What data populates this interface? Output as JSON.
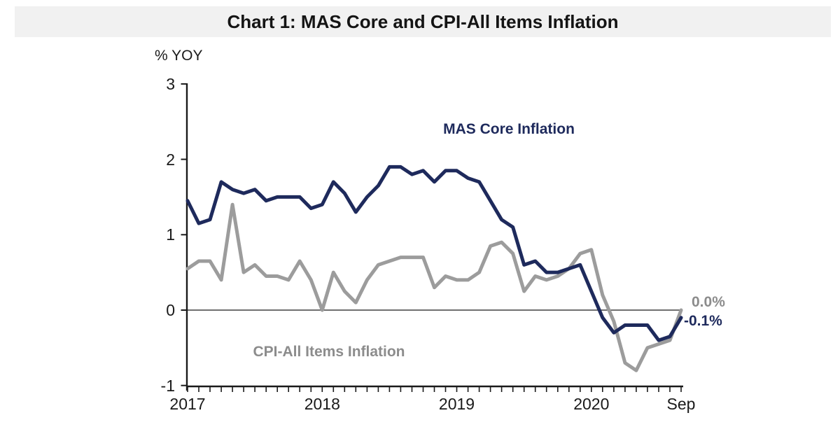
{
  "title": "Chart 1: MAS Core and CPI-All Items Inflation",
  "colors": {
    "navy": "#1E2A5C",
    "gray_line": "#9C9C9C",
    "gray_text": "#8C8C8C",
    "band_bg": "#F1F1F1",
    "axis": "#1A1A1A"
  },
  "chart_data": {
    "type": "line",
    "title": "Chart 1: MAS Core and CPI-All Items Inflation",
    "ylabel": "% YOY",
    "ylim": [
      -1,
      3
    ],
    "y_ticks": [
      3,
      2,
      1,
      0,
      -1
    ],
    "y_tick_labels": [
      "3",
      "2",
      "1",
      "0",
      "-1"
    ],
    "x_tick_labels": [
      "2017",
      "2018",
      "2019",
      "2020",
      "Sep"
    ],
    "x_start": "Jan 2017",
    "x_end": "Sep 2020",
    "grid": "off",
    "legend_position": "inline-annotations",
    "series": [
      {
        "name": "CPI-All Items Inflation",
        "color": "#9C9C9C",
        "end_label": "0.0%",
        "end_value": 0.0,
        "values": [
          0.55,
          0.65,
          0.65,
          0.4,
          1.4,
          0.5,
          0.6,
          0.45,
          0.45,
          0.4,
          0.65,
          0.4,
          0.0,
          0.5,
          0.25,
          0.1,
          0.4,
          0.6,
          0.65,
          0.7,
          0.7,
          0.7,
          0.3,
          0.45,
          0.4,
          0.4,
          0.5,
          0.85,
          0.9,
          0.75,
          0.25,
          0.45,
          0.4,
          0.45,
          0.55,
          0.75,
          0.8,
          0.2,
          -0.15,
          -0.7,
          -0.8,
          -0.5,
          -0.45,
          -0.4,
          0.0
        ]
      },
      {
        "name": "MAS Core Inflation",
        "color": "#1E2A5C",
        "end_label": "-0.1%",
        "end_value": -0.1,
        "values": [
          1.45,
          1.15,
          1.2,
          1.7,
          1.6,
          1.55,
          1.6,
          1.45,
          1.5,
          1.5,
          1.5,
          1.35,
          1.4,
          1.7,
          1.55,
          1.3,
          1.5,
          1.65,
          1.9,
          1.9,
          1.8,
          1.85,
          1.7,
          1.85,
          1.85,
          1.75,
          1.7,
          1.45,
          1.2,
          1.1,
          0.6,
          0.65,
          0.5,
          0.5,
          0.55,
          0.6,
          0.25,
          -0.1,
          -0.3,
          -0.2,
          -0.2,
          -0.2,
          -0.4,
          -0.35,
          -0.1
        ]
      }
    ]
  }
}
